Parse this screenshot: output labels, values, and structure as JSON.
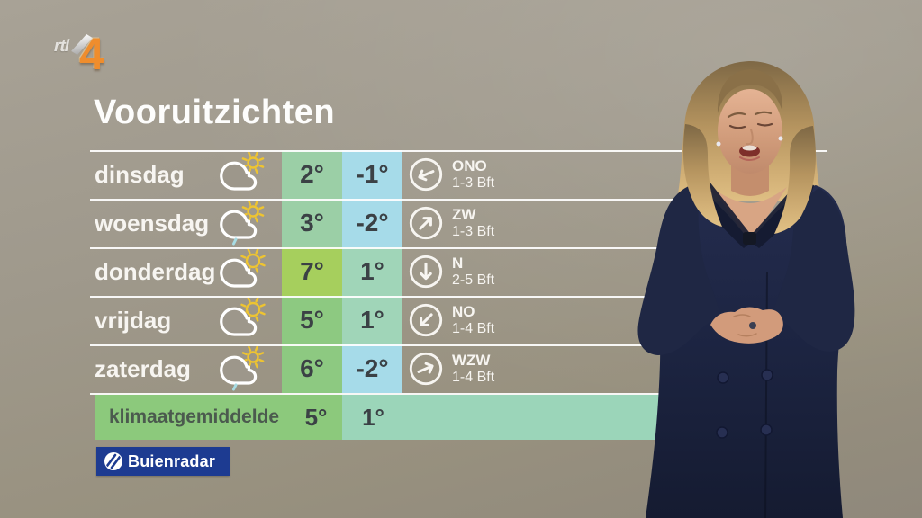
{
  "channel": {
    "name": "rtl",
    "number": "4"
  },
  "title": "Vooruitzichten",
  "forecast_rows": [
    {
      "day": "dinsdag",
      "icon": "cloud-small-sun",
      "max": "2°",
      "min": "-1°",
      "wind_direction": "ONO",
      "wind_force": "1-3 Bft",
      "arrow_rotation_deg": 247,
      "max_bg": "#9bcfa6",
      "min_bg": "#a6dbe9"
    },
    {
      "day": "woensdag",
      "icon": "cloud-sun-drizzle",
      "max": "3°",
      "min": "-2°",
      "wind_direction": "ZW",
      "wind_force": "1-3 Bft",
      "arrow_rotation_deg": 45,
      "max_bg": "#9bcfa6",
      "min_bg": "#a6dbe9"
    },
    {
      "day": "donderdag",
      "icon": "cloud-sun",
      "max": "7°",
      "min": "1°",
      "wind_direction": "N",
      "wind_force": "2-5 Bft",
      "arrow_rotation_deg": 180,
      "max_bg": "#a6cf5d",
      "min_bg": "#a0d5b8"
    },
    {
      "day": "vrijdag",
      "icon": "cloud-sun",
      "max": "5°",
      "min": "1°",
      "wind_direction": "NO",
      "wind_force": "1-4 Bft",
      "arrow_rotation_deg": 225,
      "max_bg": "#8dc981",
      "min_bg": "#a0d5b8"
    },
    {
      "day": "zaterdag",
      "icon": "cloud-sun-drizzle",
      "max": "6°",
      "min": "-2°",
      "wind_direction": "WZW",
      "wind_force": "1-4 Bft",
      "arrow_rotation_deg": 67,
      "max_bg": "#8dc981",
      "min_bg": "#a6dbe9"
    }
  ],
  "climate_row": {
    "label": "klimaatgemiddelde",
    "max": "5°",
    "min": "1°",
    "max_bg": "#8cc97c",
    "min_bg": "#9bd5b9"
  },
  "branding": {
    "logo_text": "Buienradar"
  },
  "colors": {
    "background": "#9d978b",
    "separator_line": "#ffffff",
    "title_text": "#fdfdfc",
    "temp_text": "#3b4145",
    "day_text": "#f7f5f1",
    "buienradar_blue": "#1d3b91",
    "rtl_orange": "#ef8d2d",
    "sun_yellow": "#eec431",
    "drizzle_blue": "#a8dce4",
    "coat_navy": "#1c2441"
  }
}
